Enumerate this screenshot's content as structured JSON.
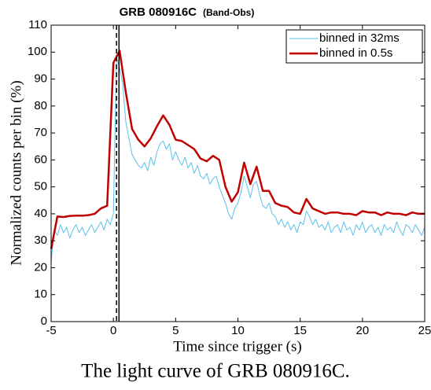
{
  "chart_data": {
    "type": "line",
    "title": "GRB 080916C",
    "subtitle": "(Band-Obs)",
    "xlabel": "Time since trigger (s)",
    "ylabel": "Normalized counts per bin (%)",
    "caption": "The light curve of GRB 080916C.",
    "xlim": [
      -5,
      25
    ],
    "xticks": [
      -5,
      0,
      5,
      10,
      15,
      20,
      25
    ],
    "ylim": [
      0,
      110
    ],
    "yticks": [
      0,
      10,
      20,
      30,
      40,
      50,
      60,
      70,
      80,
      90,
      100,
      110
    ],
    "legend": "upper right",
    "reference_lines": [
      {
        "x": 0.25,
        "dashed": true,
        "color": "#000000"
      },
      {
        "x": 0.45,
        "dashed": false,
        "color": "#000000"
      }
    ],
    "series": [
      {
        "name": "binned in 32ms",
        "color": "#5bc0eb",
        "width": 1,
        "x": [
          -5,
          -4.75,
          -4.5,
          -4.25,
          -4,
          -3.75,
          -3.5,
          -3.25,
          -3,
          -2.75,
          -2.5,
          -2.25,
          -2,
          -1.75,
          -1.5,
          -1.25,
          -1,
          -0.75,
          -0.5,
          -0.25,
          0,
          0.25,
          0.5,
          0.75,
          1,
          1.25,
          1.5,
          1.75,
          2,
          2.25,
          2.5,
          2.75,
          3,
          3.25,
          3.5,
          3.75,
          4,
          4.25,
          4.5,
          4.75,
          5,
          5.25,
          5.5,
          5.75,
          6,
          6.25,
          6.5,
          6.75,
          7,
          7.25,
          7.5,
          7.75,
          8,
          8.25,
          8.5,
          8.75,
          9,
          9.25,
          9.5,
          9.75,
          10,
          10.25,
          10.5,
          10.75,
          11,
          11.25,
          11.5,
          11.75,
          12,
          12.25,
          12.5,
          12.75,
          13,
          13.25,
          13.5,
          13.75,
          14,
          14.25,
          14.5,
          14.75,
          15,
          15.25,
          15.5,
          15.75,
          16,
          16.25,
          16.5,
          16.75,
          17,
          17.25,
          17.5,
          17.75,
          18,
          18.25,
          18.5,
          18.75,
          19,
          19.25,
          19.5,
          19.75,
          20,
          20.25,
          20.5,
          20.75,
          21,
          21.25,
          21.5,
          21.75,
          22,
          22.25,
          22.5,
          22.75,
          23,
          23.25,
          23.5,
          23.75,
          24,
          24.25,
          24.5,
          24.75,
          25
        ],
        "values": [
          22,
          34,
          32,
          36,
          33,
          35,
          31,
          34,
          36,
          33,
          35,
          32,
          34,
          36,
          33,
          35,
          37,
          34,
          38,
          36,
          40,
          98,
          94,
          88,
          74,
          68,
          62,
          60,
          58,
          57,
          59,
          56,
          61,
          58,
          63,
          66,
          67,
          64,
          66,
          60,
          63,
          60,
          58,
          61,
          57,
          59,
          55,
          58,
          54,
          53,
          55,
          51,
          53,
          54,
          50,
          47,
          44,
          40,
          38,
          42,
          44,
          48,
          54,
          50,
          46,
          51,
          52,
          47,
          43,
          42,
          44,
          40,
          39,
          36,
          38,
          35,
          37,
          34,
          36,
          33,
          37,
          36,
          41,
          39,
          36,
          38,
          35,
          36,
          34,
          37,
          33,
          35,
          36,
          33,
          37,
          34,
          35,
          32,
          36,
          34,
          37,
          33,
          35,
          36,
          33,
          35,
          32,
          36,
          34,
          35,
          33,
          37,
          34,
          32,
          36,
          35,
          33,
          36,
          34,
          32,
          35
        ]
      },
      {
        "name": "binned in 0.5s",
        "color": "#c00000",
        "width": 2.5,
        "x": [
          -5,
          -4.5,
          -4,
          -3.5,
          -3,
          -2.5,
          -2,
          -1.5,
          -1,
          -0.5,
          0,
          0.5,
          1,
          1.5,
          2,
          2.5,
          3,
          3.5,
          4,
          4.5,
          5,
          5.5,
          6,
          6.5,
          7,
          7.5,
          8,
          8.5,
          9,
          9.5,
          10,
          10.5,
          11,
          11.5,
          12,
          12.5,
          13,
          13.5,
          14,
          14.5,
          15,
          15.5,
          16,
          16.5,
          17,
          17.5,
          18,
          18.5,
          19,
          19.5,
          20,
          20.5,
          21,
          21.5,
          22,
          22.5,
          23,
          23.5,
          24,
          24.5,
          25
        ],
        "values": [
          27,
          39,
          38.8,
          39.2,
          39.3,
          39.3,
          39.5,
          40,
          42,
          43,
          96,
          100.5,
          85,
          71.5,
          67.5,
          65,
          68,
          72.5,
          76.5,
          73,
          67.5,
          67,
          65.5,
          64,
          60.5,
          59.5,
          61.5,
          60,
          50,
          44.5,
          48,
          59,
          51,
          57.5,
          48.5,
          48.5,
          44,
          43,
          42.5,
          40.5,
          40,
          45.5,
          42,
          41,
          40,
          40.5,
          40.5,
          40,
          40,
          39.5,
          41,
          40.5,
          40.5,
          39.5,
          40.5,
          40,
          40,
          39.5,
          40.5,
          40,
          40
        ]
      }
    ]
  }
}
